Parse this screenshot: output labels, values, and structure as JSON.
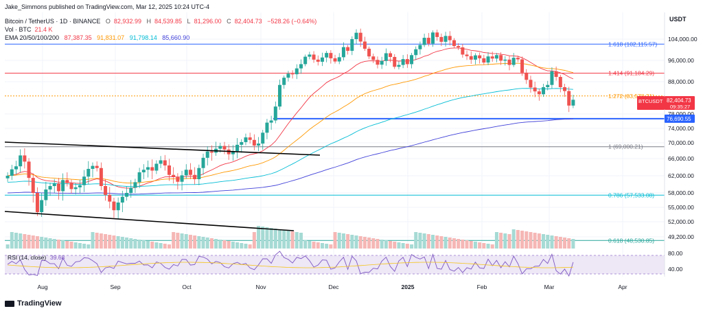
{
  "header": {
    "published": "Jake_Simmons published on TradingView.com, Mar 12, 2025 10:24 UTC-4",
    "symbol": "Bitcoin / TetherUS · 1D · BINANCE",
    "ohlc": {
      "O": "82,932.99",
      "H": "84,539.85",
      "L": "81,296.00",
      "C": "82,404.73",
      "change": "−528.26 (−0.64%)"
    },
    "vol_label": "Vol · BTC",
    "vol_value": "21.4 K",
    "ema_label": "EMA 20/50/100/200",
    "ema_values": [
      "87,387.35",
      "91,831.07",
      "91,798.14",
      "85,660.90"
    ],
    "currency": "USDT"
  },
  "colors": {
    "up": "#26a69a",
    "down": "#ef5350",
    "ema20": "#f23645",
    "ema50": "#ff9800",
    "ema100": "#00bcd4",
    "ema200": "#3f3fd9",
    "fib": "#2962ff"
  },
  "chart_data": {
    "type": "candlestick",
    "x_axis_labels": [
      "Aug",
      "Sep",
      "Oct",
      "Nov",
      "Dec",
      "2025",
      "Feb",
      "Mar",
      "Apr"
    ],
    "y_axis_labels": [
      "104,000.00",
      "96,000.00",
      "88,000.00",
      "78,000.00",
      "74,000.00",
      "70,000.00",
      "66,000.00",
      "62,000.00",
      "58,000.00",
      "55,000.00",
      "52,000.00",
      "49,200.00"
    ],
    "ylim": [
      46000,
      110000
    ],
    "fib_levels": [
      {
        "ratio": "1.618",
        "value": 102115.57,
        "label": "1.618 (102,115.57)",
        "color": "#2962ff"
      },
      {
        "ratio": "1.414",
        "value": 91184.29,
        "label": "1.414 (91,184.29)",
        "color": "#f23645"
      },
      {
        "ratio": "1.272",
        "value": 83578.21,
        "label": "1.272 (83,578.21)",
        "color": "#ff9800"
      },
      {
        "ratio": "1",
        "value": 69000.21,
        "label": "1 (69,000.21)",
        "color": "#787b86"
      },
      {
        "ratio": "0.786",
        "value": 57533.08,
        "label": "0.786 (57,533.08)",
        "color": "#00bcd4"
      },
      {
        "ratio": "0.618",
        "value": 48530.85,
        "label": "0.618 (48,530.85)",
        "color": "#26a69a"
      }
    ],
    "horizontal_line": {
      "value": 76690.55,
      "label": "76,690.55",
      "color": "#2962ff"
    },
    "last_price": {
      "symbol": "BTCUSDT",
      "price": "82,404.73",
      "countdown": "09:35:27",
      "color": "#f23645"
    },
    "close_series": [
      62000,
      63500,
      64200,
      66800,
      65300,
      61500,
      58000,
      54000,
      56500,
      58800,
      59600,
      60200,
      58400,
      61000,
      60300,
      58900,
      59300,
      59800,
      61800,
      63600,
      64300,
      63800,
      59600,
      57600,
      56200,
      54400,
      56000,
      57200,
      58000,
      59200,
      60500,
      62800,
      63400,
      64000,
      63200,
      64800,
      65600,
      64400,
      62200,
      61800,
      60600,
      62100,
      63400,
      62200,
      61200,
      63800,
      66200,
      67800,
      67500,
      68500,
      69200,
      68300,
      67100,
      67900,
      69500,
      70200,
      71500,
      70800,
      69300,
      69800,
      72800,
      75600,
      76200,
      80300,
      87000,
      89500,
      91000,
      90800,
      93000,
      94600,
      97400,
      98200,
      96300,
      95500,
      97100,
      98800,
      96800,
      95600,
      97200,
      101000,
      99600,
      104000,
      106400,
      103100,
      100400,
      97500,
      96200,
      94400,
      95800,
      98700,
      97300,
      93600,
      94300,
      96500,
      94600,
      98000,
      100200,
      101800,
      104500,
      102300,
      106500,
      104800,
      103000,
      105200,
      103600,
      101400,
      100900,
      98200,
      97600,
      96300,
      97900,
      96800,
      95200,
      97500,
      96700,
      98000,
      95900,
      96300,
      94300,
      97000,
      96400,
      91400,
      88700,
      86200,
      85000,
      84100,
      86300,
      87000,
      91900,
      89800,
      86300,
      85100,
      80600,
      82400
    ],
    "ema": [
      {
        "name": "EMA 20",
        "value": "87,387.35",
        "color": "#f23645"
      },
      {
        "name": "EMA 50",
        "value": "91,831.07",
        "color": "#ff9800"
      },
      {
        "name": "EMA 100",
        "value": "91,798.14",
        "color": "#00bcd4"
      },
      {
        "name": "EMA 200",
        "value": "85,660.90",
        "color": "#3f3fd9"
      }
    ],
    "rsi": {
      "label": "RSI (14, close)",
      "value": "39.68",
      "upper": 70,
      "lower": 30,
      "ticks": [
        "80.00",
        "40.00"
      ]
    }
  },
  "footer": {
    "brand": "TradingView"
  }
}
